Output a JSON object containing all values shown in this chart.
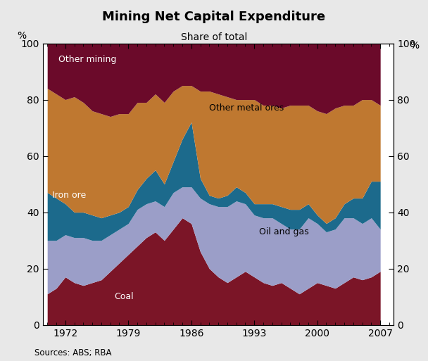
{
  "title": "Mining Net Capital Expenditure",
  "subtitle": "Share of total",
  "ylabel_left": "%",
  "ylabel_right": "%",
  "source": "Sources: ABS; RBA",
  "years": [
    1970,
    1971,
    1972,
    1973,
    1974,
    1975,
    1976,
    1977,
    1978,
    1979,
    1980,
    1981,
    1982,
    1983,
    1984,
    1985,
    1986,
    1987,
    1988,
    1989,
    1990,
    1991,
    1992,
    1993,
    1994,
    1995,
    1996,
    1997,
    1998,
    1999,
    2000,
    2001,
    2002,
    2003,
    2004,
    2005,
    2006,
    2007
  ],
  "coal": [
    11,
    13,
    17,
    15,
    14,
    15,
    16,
    19,
    22,
    25,
    28,
    31,
    33,
    30,
    34,
    38,
    36,
    26,
    20,
    17,
    15,
    17,
    19,
    17,
    15,
    14,
    15,
    13,
    11,
    13,
    15,
    14,
    13,
    15,
    17,
    16,
    17,
    19
  ],
  "oil_and_gas": [
    19,
    17,
    15,
    16,
    17,
    15,
    14,
    13,
    12,
    11,
    13,
    12,
    11,
    12,
    13,
    11,
    13,
    19,
    23,
    25,
    27,
    27,
    24,
    22,
    23,
    24,
    21,
    21,
    23,
    25,
    21,
    19,
    21,
    23,
    21,
    20,
    21,
    15
  ],
  "iron_ore": [
    17,
    15,
    11,
    9,
    9,
    9,
    8,
    7,
    6,
    6,
    7,
    9,
    11,
    8,
    11,
    17,
    23,
    7,
    3,
    3,
    4,
    5,
    4,
    4,
    5,
    5,
    6,
    7,
    7,
    5,
    3,
    3,
    4,
    5,
    7,
    9,
    13,
    17
  ],
  "other_metal_ores": [
    37,
    37,
    37,
    41,
    39,
    37,
    37,
    35,
    35,
    33,
    31,
    27,
    27,
    29,
    25,
    19,
    13,
    31,
    37,
    37,
    35,
    31,
    33,
    37,
    35,
    35,
    35,
    37,
    37,
    35,
    37,
    39,
    39,
    35,
    33,
    35,
    29,
    27
  ],
  "other_mining": [
    16,
    18,
    20,
    19,
    21,
    24,
    25,
    26,
    25,
    25,
    21,
    21,
    18,
    21,
    17,
    15,
    15,
    17,
    17,
    18,
    19,
    20,
    20,
    20,
    22,
    22,
    23,
    22,
    22,
    22,
    24,
    25,
    23,
    22,
    22,
    20,
    20,
    22
  ],
  "colors": {
    "coal": "#7B1527",
    "oil_and_gas": "#9B9EC8",
    "iron_ore": "#1C6A8C",
    "other_metal_ores": "#BF7830",
    "other_mining": "#6B0A2A"
  },
  "ylim": [
    0,
    100
  ],
  "xlim": [
    1969.5,
    2008.5
  ],
  "yticks": [
    0,
    20,
    40,
    60,
    80,
    100
  ],
  "xticks": [
    1972,
    1979,
    1986,
    1993,
    2000,
    2007
  ],
  "background_color": "#E8E8E8",
  "plot_background": "#FFFFFF"
}
